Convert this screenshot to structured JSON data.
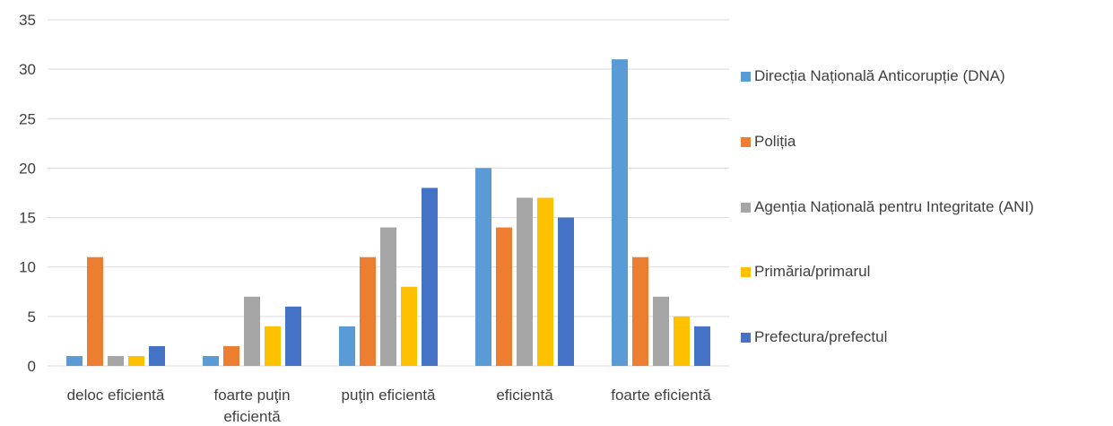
{
  "chart_data": {
    "type": "bar",
    "categories": [
      "deloc eficientă",
      "foarte puţin eficientă",
      "puţin eficientă",
      "eficientă",
      "foarte eficientă"
    ],
    "category_lines": [
      [
        "deloc eficientă"
      ],
      [
        "foarte puţin",
        "eficientă"
      ],
      [
        "puţin eficientă"
      ],
      [
        "eficientă"
      ],
      [
        "foarte eficientă"
      ]
    ],
    "series": [
      {
        "name": "Direcția Națională Anticorupție (DNA)",
        "color": "#5B9BD5",
        "values": [
          1,
          1,
          4,
          20,
          31
        ]
      },
      {
        "name": "Poliția",
        "color": "#ED7D31",
        "values": [
          11,
          2,
          11,
          14,
          11
        ]
      },
      {
        "name": "Agenția Națională pentru Integritate (ANI)",
        "color": "#A5A5A5",
        "values": [
          1,
          7,
          14,
          17,
          7
        ]
      },
      {
        "name": "Primăria/primarul",
        "color": "#FFC000",
        "values": [
          1,
          4,
          8,
          17,
          5
        ]
      },
      {
        "name": "Prefectura/prefectul",
        "color": "#4472C4",
        "values": [
          2,
          6,
          18,
          15,
          4
        ]
      }
    ],
    "yticks": [
      "0",
      "5",
      "10",
      "15",
      "20",
      "25",
      "30",
      "35"
    ],
    "ylim": [
      0,
      35
    ],
    "grid": true,
    "legend_position": "right",
    "gridline_color": "#D9D9D9"
  }
}
